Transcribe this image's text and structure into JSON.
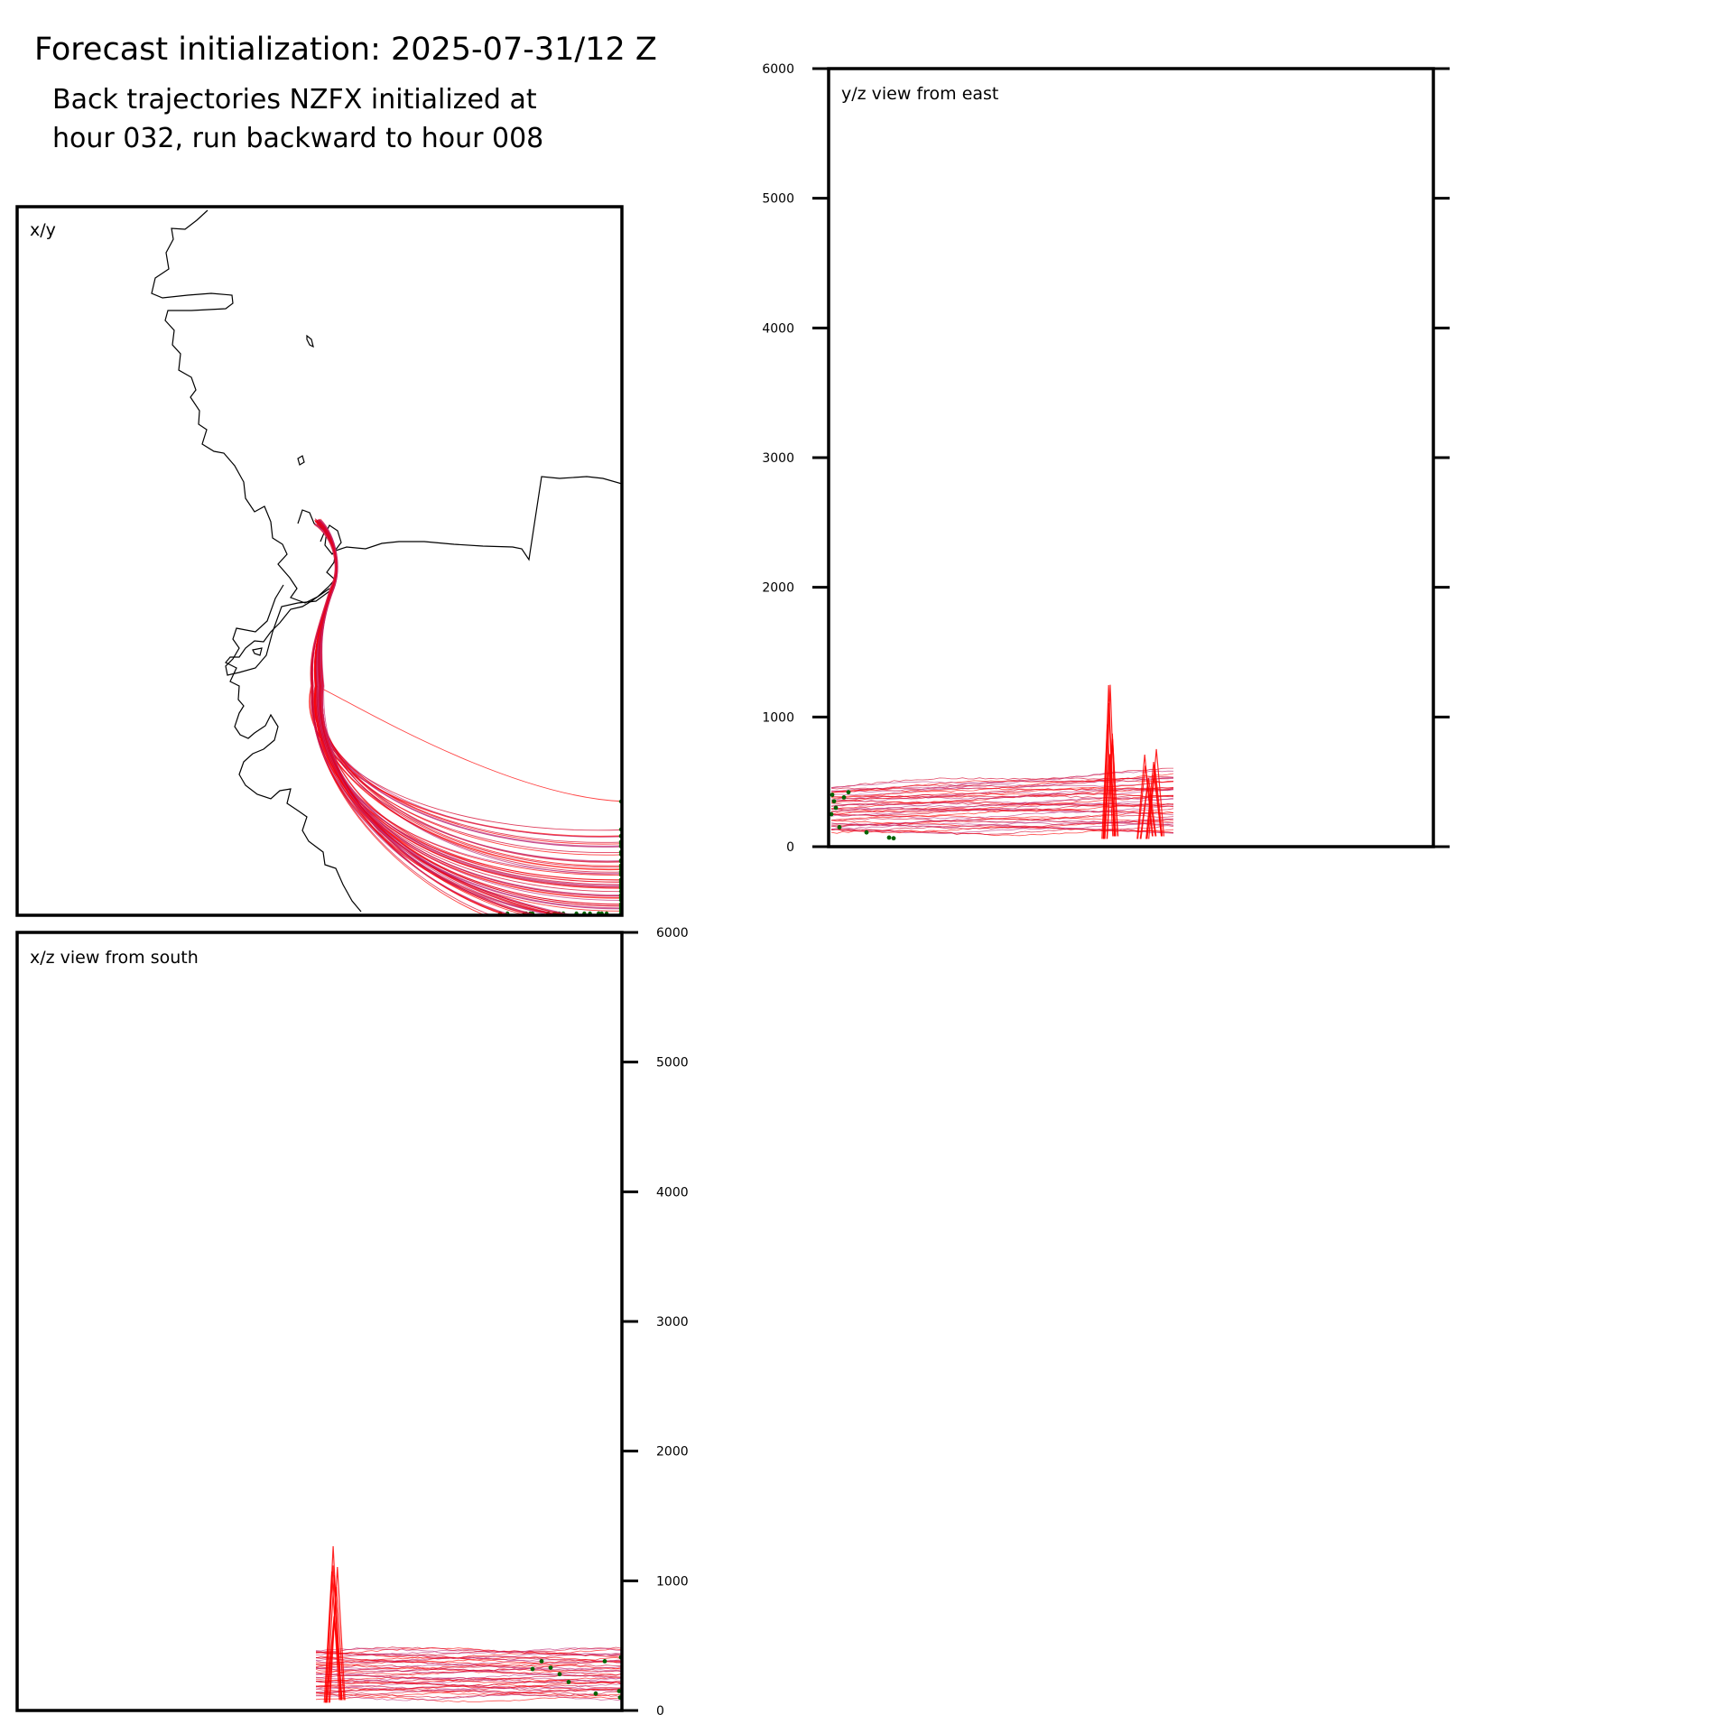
{
  "figure": {
    "title": "Forecast initialization: 2025-07-31/12 Z",
    "subtitle_line1": "Back trajectories NZFX initialized at",
    "subtitle_line2": "hour 032, run backward to hour 008"
  },
  "colors": {
    "trajectory_red": "#ff0000",
    "trajectory_crimson": "#d4002a",
    "trajectory_magenta": "#c0307a",
    "endpoint_green": "#006400",
    "coastline": "#000000",
    "frame": "#000000"
  },
  "chart_data": [
    {
      "id": "xy",
      "type": "map-trajectories",
      "panel_label": "x/y",
      "description_of_marks": "plan view of back trajectories (red/magenta curves) with coastline; trajectories start near the coast and sweep south-east, ending at the right/bottom edges with green endpoint markers",
      "series": [
        {
          "name": "",
          "count_approx": 60
        }
      ]
    },
    {
      "id": "yz",
      "type": "line",
      "panel_label": "y/z view from east",
      "ylabel": "",
      "ylim": [
        0,
        6000
      ],
      "yticks": [
        0,
        1000,
        2000,
        3000,
        4000,
        5000,
        6000
      ],
      "tick_side": "left",
      "profile": {
        "plateau_height_approx": [
          100,
          480
        ],
        "spike_1_peak": 1270,
        "spike_2_peak": 760
      }
    },
    {
      "id": "xz",
      "type": "line",
      "panel_label": "x/z view from south",
      "ylabel": "",
      "ylim": [
        0,
        6000
      ],
      "yticks": [
        0,
        1000,
        2000,
        3000,
        4000,
        5000,
        6000
      ],
      "tick_side": "right",
      "profile": {
        "plateau_height_approx": [
          100,
          480
        ],
        "spike_1_peak": 1290
      }
    }
  ]
}
